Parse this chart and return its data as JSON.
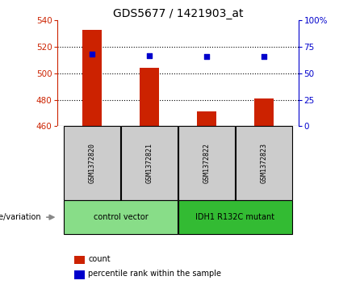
{
  "title": "GDS5677 / 1421903_at",
  "samples": [
    "GSM1372820",
    "GSM1372821",
    "GSM1372822",
    "GSM1372823"
  ],
  "bar_values": [
    533,
    504,
    471,
    481
  ],
  "percentile_values": [
    68,
    67,
    66,
    66
  ],
  "ylim_left": [
    460,
    540
  ],
  "ylim_right": [
    0,
    100
  ],
  "yticks_left": [
    460,
    480,
    500,
    520,
    540
  ],
  "yticks_right": [
    0,
    25,
    50,
    75,
    100
  ],
  "bar_color": "#cc2200",
  "dot_color": "#0000cc",
  "bar_bottom": 460,
  "groups": [
    {
      "label": "control vector",
      "samples": [
        0,
        1
      ],
      "color": "#88dd88"
    },
    {
      "label": "IDH1 R132C mutant",
      "samples": [
        2,
        3
      ],
      "color": "#33bb33"
    }
  ],
  "group_label": "genotype/variation",
  "legend_items": [
    {
      "label": "count",
      "color": "#cc2200"
    },
    {
      "label": "percentile rank within the sample",
      "color": "#0000cc"
    }
  ],
  "grid_color": "black",
  "sample_box_color": "#cccccc",
  "title_fontsize": 10,
  "tick_fontsize": 7.5,
  "label_fontsize": 7.5,
  "legend_fontsize": 7
}
